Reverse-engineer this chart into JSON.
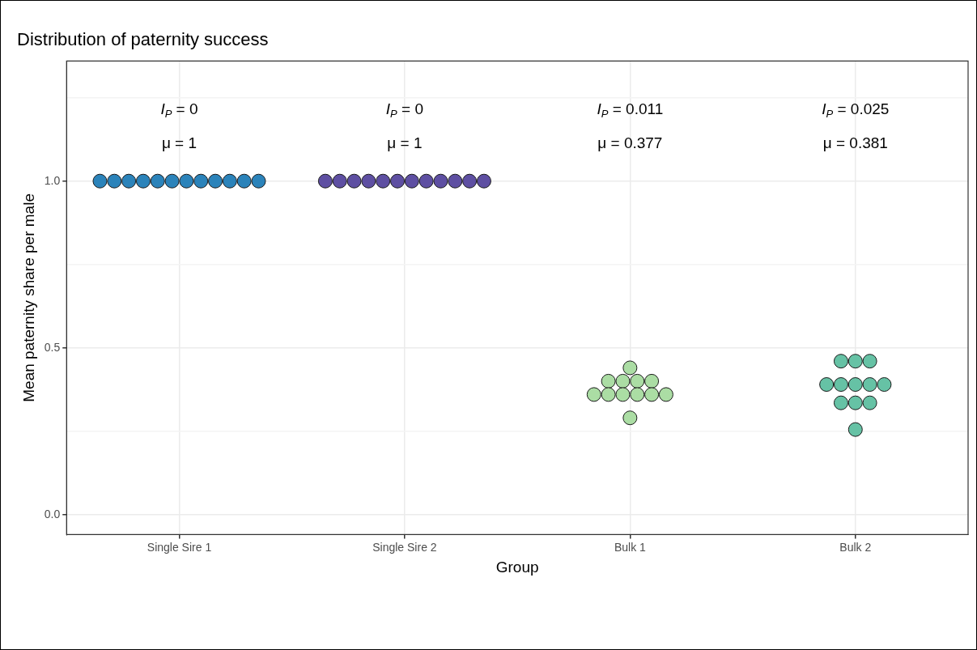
{
  "chart_data": {
    "type": "scatter",
    "title": "Distribution of paternity success",
    "xlabel": "Group",
    "ylabel": "Mean paternity share per male",
    "categories": [
      "Single Sire 1",
      "Single Sire 2",
      "Bulk 1",
      "Bulk 2"
    ],
    "series": [
      {
        "color": "#2b83ba",
        "x": [
          "Single Sire 1",
          "Single Sire 1",
          "Single Sire 1",
          "Single Sire 1",
          "Single Sire 1",
          "Single Sire 1",
          "Single Sire 1",
          "Single Sire 1",
          "Single Sire 1",
          "Single Sire 1",
          "Single Sire 1",
          "Single Sire 1"
        ],
        "values": [
          1,
          1,
          1,
          1,
          1,
          1,
          1,
          1,
          1,
          1,
          1,
          1
        ]
      },
      {
        "color": "#5e4fa2",
        "x": [
          "Single Sire 2",
          "Single Sire 2",
          "Single Sire 2",
          "Single Sire 2",
          "Single Sire 2",
          "Single Sire 2",
          "Single Sire 2",
          "Single Sire 2",
          "Single Sire 2",
          "Single Sire 2",
          "Single Sire 2",
          "Single Sire 2"
        ],
        "values": [
          1,
          1,
          1,
          1,
          1,
          1,
          1,
          1,
          1,
          1,
          1,
          1
        ]
      },
      {
        "color": "#abdda4",
        "x": [
          "Bulk 1",
          "Bulk 1",
          "Bulk 1",
          "Bulk 1",
          "Bulk 1",
          "Bulk 1",
          "Bulk 1",
          "Bulk 1",
          "Bulk 1",
          "Bulk 1",
          "Bulk 1",
          "Bulk 1"
        ],
        "values": [
          0.44,
          0.4,
          0.4,
          0.4,
          0.4,
          0.36,
          0.36,
          0.36,
          0.36,
          0.36,
          0.36,
          0.29
        ]
      },
      {
        "color": "#66c2a5",
        "x": [
          "Bulk 2",
          "Bulk 2",
          "Bulk 2",
          "Bulk 2",
          "Bulk 2",
          "Bulk 2",
          "Bulk 2",
          "Bulk 2",
          "Bulk 2",
          "Bulk 2",
          "Bulk 2",
          "Bulk 2"
        ],
        "values": [
          0.46,
          0.46,
          0.46,
          0.39,
          0.39,
          0.39,
          0.39,
          0.39,
          0.335,
          0.335,
          0.335,
          0.255
        ]
      }
    ],
    "ylim": [
      -0.06,
      1.36
    ],
    "yticks": [
      {
        "value": 0,
        "label": "0.0"
      },
      {
        "value": 0.25,
        "label": null
      },
      {
        "value": 0.5,
        "label": "0.5"
      },
      {
        "value": 0.75,
        "label": null
      },
      {
        "value": 1,
        "label": "1.0"
      },
      {
        "value": 1.25,
        "label": null
      }
    ],
    "annotations": [
      "I$_{P}$ = 0",
      "μ = 1",
      "I$_{P}$ = 0",
      "μ = 1",
      "I$_{P}$ = 0.011",
      "μ = 0.377",
      "I$_{P}$ = 0.025",
      "μ = 0.381"
    ],
    "grid": true,
    "legend": false,
    "marker": "circle"
  }
}
